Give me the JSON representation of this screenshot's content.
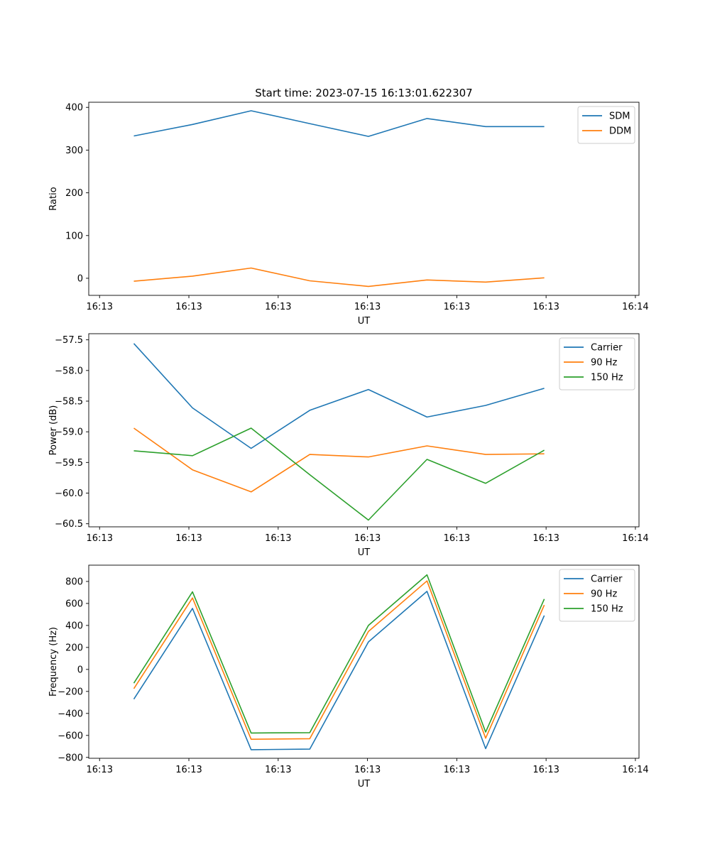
{
  "chart_data": [
    {
      "type": "line",
      "title": "Start time: 2023-07-15 16:13:01.622307",
      "xlabel": "UT",
      "ylabel": "Ratio",
      "x": [
        1.0,
        1.65,
        2.3,
        2.95,
        3.6,
        4.25,
        4.9,
        5.55
      ],
      "xlim": [
        0.5,
        6.6
      ],
      "xticks": [
        0.62,
        1.61,
        2.6,
        3.59,
        4.58,
        5.57,
        6.56
      ],
      "xtick_labels": [
        "16:13",
        "16:13",
        "16:13",
        "16:13",
        "16:13",
        "16:13",
        "16:14"
      ],
      "ylim": [
        -40,
        412
      ],
      "yticks": [
        0,
        100,
        200,
        300,
        400
      ],
      "ytick_labels": [
        "0",
        "100",
        "200",
        "300",
        "400"
      ],
      "legend_position": "top-right",
      "series": [
        {
          "name": "SDM",
          "color": "#1f77b4",
          "values": [
            333,
            360,
            392,
            362,
            332,
            374,
            355,
            355
          ]
        },
        {
          "name": "DDM",
          "color": "#ff7f0e",
          "values": [
            -7,
            5,
            24,
            -6,
            -19,
            -4,
            -9,
            1
          ]
        }
      ]
    },
    {
      "type": "line",
      "xlabel": "UT",
      "ylabel": "Power (dB)",
      "x": [
        1.0,
        1.65,
        2.3,
        2.95,
        3.6,
        4.25,
        4.9,
        5.55
      ],
      "xlim": [
        0.5,
        6.6
      ],
      "xticks": [
        0.62,
        1.61,
        2.6,
        3.59,
        4.58,
        5.57,
        6.56
      ],
      "xtick_labels": [
        "16:13",
        "16:13",
        "16:13",
        "16:13",
        "16:13",
        "16:13",
        "16:14"
      ],
      "ylim": [
        -60.55,
        -57.4
      ],
      "yticks": [
        -57.5,
        -58.0,
        -58.5,
        -59.0,
        -59.5,
        -60.0,
        -60.5
      ],
      "ytick_labels": [
        "−57.5",
        "−58.0",
        "−58.5",
        "−59.0",
        "−59.5",
        "−60.0",
        "−60.5"
      ],
      "legend_position": "top-right",
      "series": [
        {
          "name": "Carrier",
          "color": "#1f77b4",
          "values": [
            -57.56,
            -58.61,
            -59.27,
            -58.65,
            -58.31,
            -58.76,
            -58.57,
            -58.29
          ]
        },
        {
          "name": "90 Hz",
          "color": "#ff7f0e",
          "values": [
            -58.94,
            -59.62,
            -59.98,
            -59.37,
            -59.41,
            -59.23,
            -59.37,
            -59.36
          ]
        },
        {
          "name": "150 Hz",
          "color": "#2ca02c",
          "values": [
            -59.31,
            -59.39,
            -58.94,
            -59.7,
            -60.44,
            -59.45,
            -59.84,
            -59.3
          ]
        }
      ]
    },
    {
      "type": "line",
      "xlabel": "UT",
      "ylabel": "Frequency (Hz)",
      "x": [
        1.0,
        1.65,
        2.3,
        2.95,
        3.6,
        4.25,
        4.9,
        5.55
      ],
      "xlim": [
        0.5,
        6.6
      ],
      "xticks": [
        0.62,
        1.61,
        2.6,
        3.59,
        4.58,
        5.57,
        6.56
      ],
      "xtick_labels": [
        "16:13",
        "16:13",
        "16:13",
        "16:13",
        "16:13",
        "16:13",
        "16:14"
      ],
      "ylim": [
        -808,
        948
      ],
      "yticks": [
        800,
        600,
        400,
        200,
        0,
        -200,
        -400,
        -600,
        -800
      ],
      "ytick_labels": [
        "800",
        "600",
        "400",
        "200",
        "0",
        "−200",
        "−400",
        "−600",
        "−800"
      ],
      "legend_position": "top-right",
      "series": [
        {
          "name": "Carrier",
          "color": "#1f77b4",
          "values": [
            -270,
            555,
            -730,
            -725,
            250,
            710,
            -720,
            490
          ]
        },
        {
          "name": "90 Hz",
          "color": "#ff7f0e",
          "values": [
            -175,
            650,
            -635,
            -630,
            345,
            805,
            -625,
            585
          ]
        },
        {
          "name": "150 Hz",
          "color": "#2ca02c",
          "values": [
            -125,
            705,
            -578,
            -575,
            400,
            860,
            -570,
            640
          ]
        }
      ]
    }
  ]
}
